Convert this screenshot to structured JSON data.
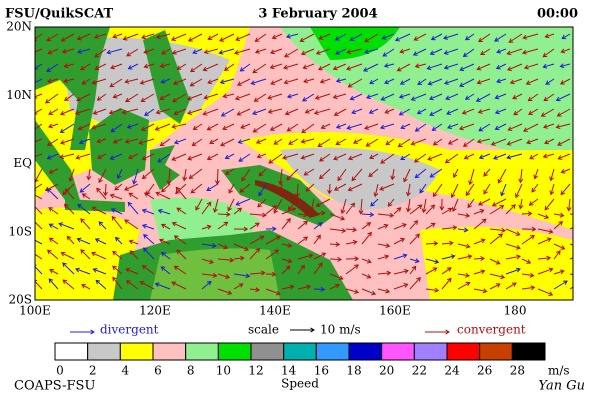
{
  "header": {
    "left": "FSU/QuikSCAT",
    "center": "3 February 2004",
    "right": "00:00"
  },
  "axes": {
    "lat_labels": [
      "20N",
      "10N",
      "EQ",
      "10S",
      "20S"
    ],
    "lon_labels": [
      "100E",
      "120E",
      "140E",
      "160E",
      "180"
    ]
  },
  "legend": {
    "divergent": "divergent",
    "scale": "scale",
    "scale_value": "10 m/s",
    "convergent": "convergent",
    "divergent_color": "#2020d0",
    "convergent_color": "#b01010"
  },
  "colorbar": {
    "ticks": [
      0,
      2,
      4,
      6,
      8,
      10,
      12,
      14,
      16,
      18,
      20,
      22,
      24,
      26,
      28
    ],
    "unit": "m/s",
    "title": "Speed",
    "colors": [
      "#ffffff",
      "#c8c8c8",
      "#ffff00",
      "#ffc0c0",
      "#90f090",
      "#00e000",
      "#909090",
      "#00b0b0",
      "#3399ff",
      "#0000c8",
      "#ff55ff",
      "#a080ff",
      "#ff0000",
      "#c84000",
      "#000000"
    ]
  },
  "footer": {
    "left": "COAPS-FSU",
    "right": "Yan Gu"
  }
}
